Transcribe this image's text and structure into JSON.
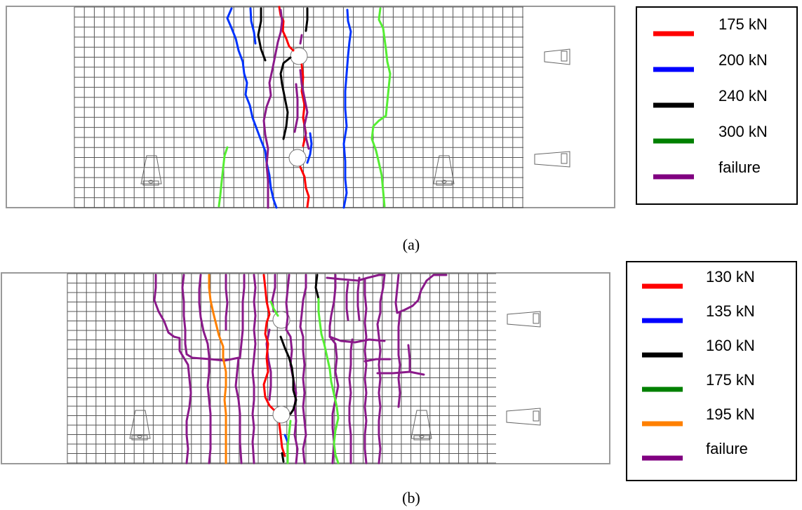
{
  "panels": [
    {
      "caption": "(a)",
      "legend": [
        {
          "label": "175 kN",
          "color": "#ff0000"
        },
        {
          "label": "200 kN",
          "color": "#0000ff"
        },
        {
          "label": "240 kN",
          "color": "#000000"
        },
        {
          "label": "300 kN",
          "color": "#008000"
        },
        {
          "label": "failure",
          "color": "#800080"
        }
      ]
    },
    {
      "caption": "(b)",
      "legend": [
        {
          "label": "130 kN",
          "color": "#ff0000"
        },
        {
          "label": "135 kN",
          "color": "#0000ff"
        },
        {
          "label": "160 kN",
          "color": "#000000"
        },
        {
          "label": "175 kN",
          "color": "#008000"
        },
        {
          "label": "195 kN",
          "color": "#ff8000"
        },
        {
          "label": "failure",
          "color": "#800080"
        }
      ]
    }
  ],
  "crack_colors": {
    "red": "#ff0000",
    "blue": "#0033ff",
    "black": "#000000",
    "lime": "#55ee33",
    "orange": "#ff8000",
    "purple": "#8a1a8a"
  }
}
